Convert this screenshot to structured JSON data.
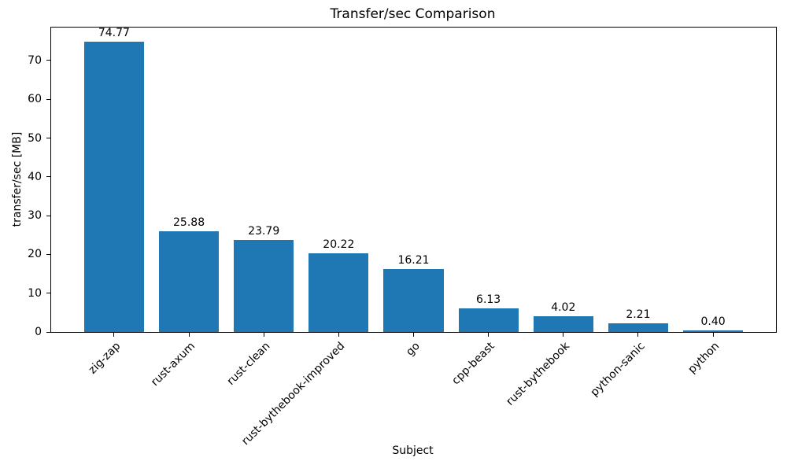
{
  "chart_data": {
    "type": "bar",
    "title": "Transfer/sec Comparison",
    "xlabel": "Subject",
    "ylabel": "transfer/sec [MB]",
    "categories": [
      "zig-zap",
      "rust-axum",
      "rust-clean",
      "rust-bythebook-improved",
      "go",
      "cpp-beast",
      "rust-bythebook",
      "python-sanic",
      "python"
    ],
    "values": [
      74.77,
      25.88,
      23.79,
      20.22,
      16.21,
      6.13,
      4.02,
      2.21,
      0.4
    ],
    "value_labels": [
      "74.77",
      "25.88",
      "23.79",
      "20.22",
      "16.21",
      "6.13",
      "4.02",
      "2.21",
      "0.40"
    ],
    "yticks": [
      0,
      10,
      20,
      30,
      40,
      50,
      60,
      70
    ],
    "ylim": [
      0,
      78.5
    ],
    "bar_color": "#1f77b4",
    "axis_color": "#000000",
    "grid": false,
    "legend_position": "none",
    "x_tick_rotation_deg": 45,
    "bar_relative_width": 0.8
  }
}
